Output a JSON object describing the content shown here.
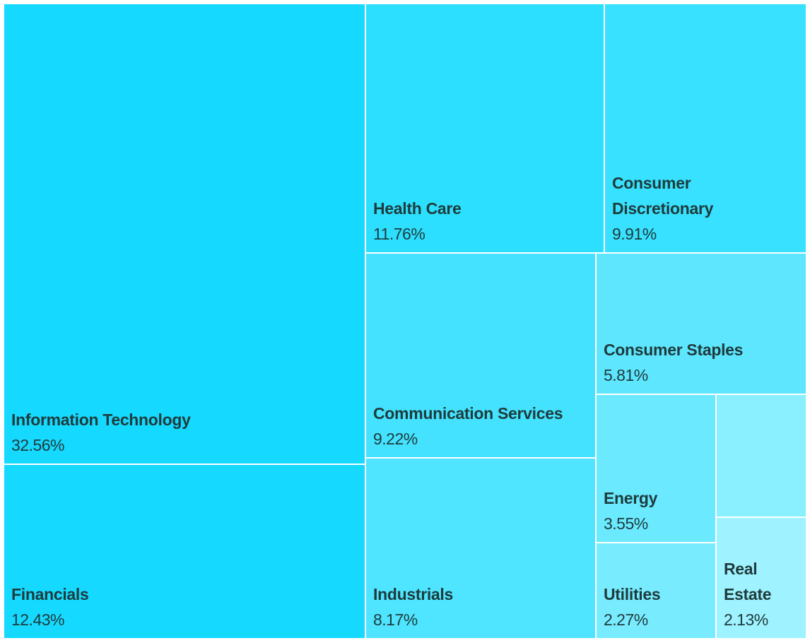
{
  "chart_data": {
    "type": "treemap",
    "title": "",
    "items": [
      {
        "label": "Information Technology",
        "value": 32.56,
        "value_text": "32.56%",
        "color": "#16d9ff"
      },
      {
        "label": "Financials",
        "value": 12.43,
        "value_text": "12.43%",
        "color": "#16d9ff"
      },
      {
        "label": "Health Care",
        "value": 11.76,
        "value_text": "11.76%",
        "color": "#2ddfff"
      },
      {
        "label": "Consumer Discretionary",
        "value": 9.91,
        "value_text": "9.91%",
        "color": "#38e1ff"
      },
      {
        "label": "Communication Services",
        "value": 9.22,
        "value_text": "9.22%",
        "color": "#44e2ff"
      },
      {
        "label": "Industrials",
        "value": 8.17,
        "value_text": "8.17%",
        "color": "#4fe4ff"
      },
      {
        "label": "Consumer Staples",
        "value": 5.81,
        "value_text": "5.81%",
        "color": "#5ee6ff"
      },
      {
        "label": "Energy",
        "value": 3.55,
        "value_text": "3.55%",
        "color": "#6ae9ff"
      },
      {
        "label": "Utilities",
        "value": 2.27,
        "value_text": "2.27%",
        "color": "#78ebff"
      },
      {
        "label": "",
        "value": 2.1,
        "value_text": "",
        "color": "#8aefff"
      },
      {
        "label": "Real Estate",
        "value": 2.13,
        "value_text": "2.13%",
        "color": "#9ff2ff"
      }
    ]
  }
}
